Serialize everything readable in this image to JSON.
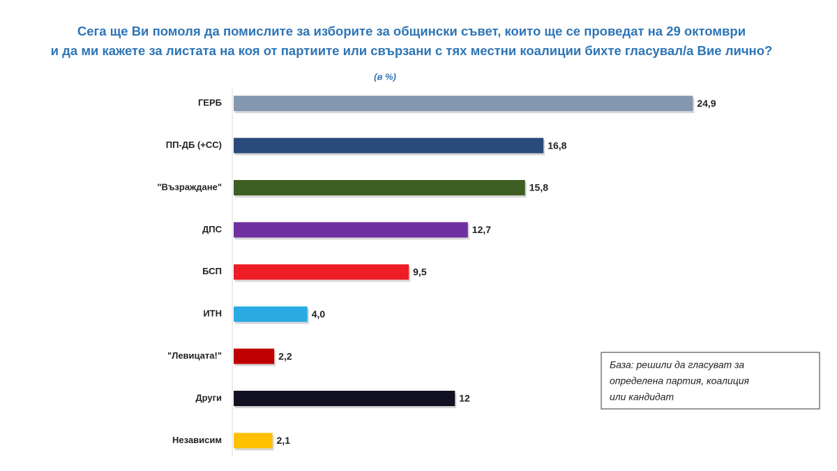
{
  "chart_data": {
    "type": "bar",
    "orientation": "horizontal",
    "title": [
      "Сега ще Ви помоля да помислите за изборите за общински съвет, които ще се проведат на 29 октомври",
      "и да ми кажете за листата на коя от партиите или свързани с тях местни коалиции бихте гласувал/а Вие лично?"
    ],
    "subtitle": "(в %)",
    "categories": [
      "ГЕРБ",
      "ПП-ДБ (+СС)",
      "\"Възраждане\"",
      "ДПС",
      "БСП",
      "ИТН",
      "\"Левицата!\"",
      "Други",
      "Независим"
    ],
    "values": [
      24.9,
      16.8,
      15.8,
      12.7,
      9.5,
      4.0,
      2.2,
      12,
      2.1
    ],
    "value_labels": [
      "24,9",
      "16,8",
      "15,8",
      "12,7",
      "9,5",
      "4,0",
      "2,2",
      "12",
      "2,1"
    ],
    "colors": [
      "#8497b0",
      "#2a4a7c",
      "#3d5e22",
      "#7030a0",
      "#ee1c25",
      "#29abe2",
      "#c00000",
      "#111122",
      "#ffc000"
    ],
    "xlim": [
      0,
      25
    ],
    "note": [
      "База: решили да гласуват за",
      "определена партия, коалиция",
      "или кандидат"
    ]
  }
}
